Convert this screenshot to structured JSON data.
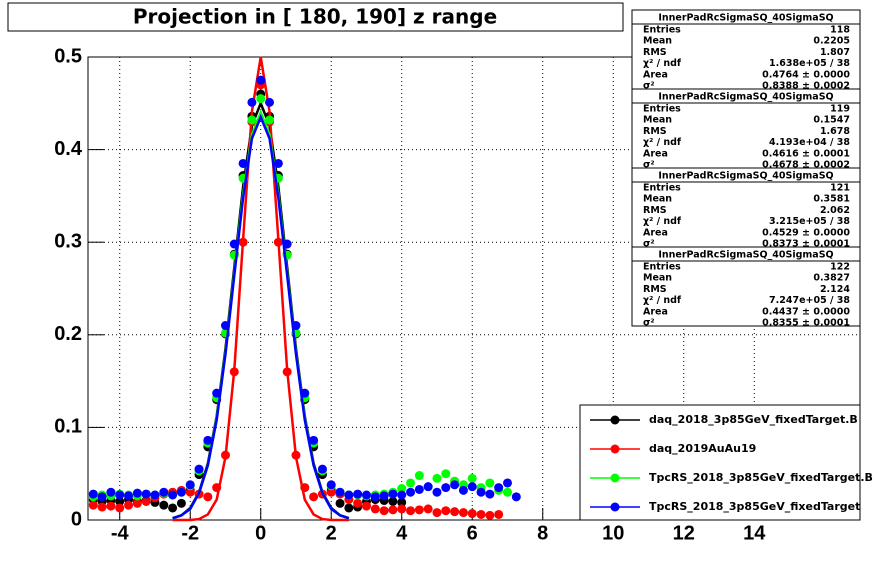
{
  "chart_data": {
    "type": "scatter",
    "title": "Projection in [ 180, 190] z range",
    "xlim": [
      -4.9,
      17
    ],
    "ylim": [
      0,
      0.5
    ],
    "grid": true,
    "xticks": [
      -4,
      -2,
      0,
      2,
      4,
      6,
      8,
      10,
      12,
      14
    ],
    "yticks": [
      0,
      0.1,
      0.2,
      0.3,
      0.4,
      0.5
    ],
    "x": [
      -4.75,
      -4.5,
      -4.25,
      -4,
      -3.75,
      -3.5,
      -3.25,
      -3,
      -2.75,
      -2.5,
      -2.25,
      -2,
      -1.75,
      -1.5,
      -1.25,
      -1,
      -0.75,
      -0.5,
      -0.25,
      0,
      0.25,
      0.5,
      0.75,
      1,
      1.25,
      1.5,
      1.75,
      2,
      2.25,
      2.5,
      2.75,
      3,
      3.25,
      3.5,
      3.75,
      4,
      4.25,
      4.5,
      4.75,
      5,
      5.25,
      5.5,
      5.75,
      6,
      6.25,
      6.5,
      6.75,
      7,
      7.25
    ],
    "fit_x": [
      -2.5,
      -2.25,
      -2,
      -1.75,
      -1.5,
      -1.25,
      -1,
      -0.75,
      -0.5,
      -0.25,
      0,
      0.25,
      0.5,
      0.75,
      1,
      1.25,
      1.5,
      1.75,
      2,
      2.25,
      2.5
    ],
    "series": [
      {
        "name": "daq_2018_3p85GeV_fixedTarget.B",
        "color": "#000000",
        "values": [
          0.022,
          0.02,
          0.021,
          0.02,
          0.022,
          0.02,
          0.021,
          0.019,
          0.016,
          0.013,
          0.018,
          0.032,
          0.049,
          0.079,
          0.13,
          0.201,
          0.287,
          0.372,
          0.436,
          0.46,
          0.436,
          0.372,
          0.287,
          0.201,
          0.13,
          0.079,
          0.049,
          0.032,
          0.018,
          0.013,
          0.014,
          0.02,
          0.022,
          0.021,
          0.02,
          0.019,
          null,
          null,
          null,
          null,
          null,
          null,
          null,
          null,
          null,
          null,
          null,
          null,
          null
        ],
        "fit_values": [
          0.002,
          0.005,
          0.013,
          0.03,
          0.061,
          0.112,
          0.185,
          0.273,
          0.36,
          0.426,
          0.45,
          0.426,
          0.36,
          0.273,
          0.185,
          0.112,
          0.061,
          0.03,
          0.013,
          0.005,
          0.002
        ]
      },
      {
        "name": "daq_2019AuAu19",
        "color": "#ff0000",
        "values": [
          0.016,
          0.014,
          0.015,
          0.013,
          0.016,
          0.018,
          0.02,
          0.024,
          0.028,
          0.03,
          0.032,
          0.03,
          0.028,
          0.025,
          0.035,
          0.07,
          0.16,
          0.3,
          0.43,
          0.47,
          0.43,
          0.3,
          0.16,
          0.07,
          0.035,
          0.025,
          0.028,
          0.03,
          0.028,
          0.022,
          0.018,
          0.015,
          0.012,
          0.01,
          0.011,
          0.012,
          0.01,
          0.011,
          0.012,
          0.008,
          0.01,
          0.009,
          0.008,
          0.007,
          0.006,
          0.005,
          0.006,
          null,
          null
        ],
        "fit_values": [
          0,
          0,
          0,
          0.001,
          0.006,
          0.022,
          0.068,
          0.162,
          0.303,
          0.441,
          0.5,
          0.441,
          0.303,
          0.162,
          0.068,
          0.022,
          0.006,
          0.001,
          0,
          0,
          0
        ]
      },
      {
        "name": "TpcRS_2018_3p85GeV_fixedTarget.B",
        "color": "#00ff00",
        "values": [
          0.025,
          0.027,
          0.026,
          0.028,
          0.027,
          0.026,
          0.028,
          0.027,
          0.029,
          0.027,
          0.03,
          0.037,
          0.053,
          0.083,
          0.132,
          0.202,
          0.286,
          0.369,
          0.432,
          0.455,
          0.432,
          0.369,
          0.286,
          0.202,
          0.132,
          0.083,
          0.053,
          0.037,
          0.03,
          0.027,
          0.027,
          0.026,
          0.027,
          0.028,
          0.03,
          0.034,
          0.04,
          0.048,
          0.036,
          0.045,
          0.05,
          0.042,
          0.038,
          0.045,
          0.035,
          0.04,
          0.032,
          0.03,
          null
        ],
        "fit_values": [
          0.002,
          0.005,
          0.012,
          0.029,
          0.059,
          0.11,
          0.181,
          0.267,
          0.352,
          0.416,
          0.44,
          0.416,
          0.352,
          0.267,
          0.181,
          0.11,
          0.059,
          0.029,
          0.012,
          0.005,
          0.002
        ]
      },
      {
        "name": "TpcRS_2018_3p85GeV_fixedTarget",
        "color": "#0000ff",
        "values": [
          0.028,
          0.025,
          0.03,
          0.027,
          0.026,
          0.029,
          0.028,
          0.027,
          0.03,
          0.027,
          0.03,
          0.038,
          0.055,
          0.086,
          0.137,
          0.21,
          0.298,
          0.385,
          0.451,
          0.475,
          0.451,
          0.385,
          0.298,
          0.21,
          0.137,
          0.086,
          0.055,
          0.038,
          0.03,
          0.027,
          0.028,
          0.027,
          0.025,
          0.026,
          0.028,
          0.027,
          0.03,
          0.033,
          0.036,
          0.03,
          0.035,
          0.038,
          0.032,
          0.036,
          0.03,
          0.028,
          0.035,
          0.04,
          0.025
        ],
        "fit_values": [
          0.002,
          0.005,
          0.012,
          0.029,
          0.059,
          0.108,
          0.179,
          0.264,
          0.348,
          0.412,
          0.435,
          0.412,
          0.348,
          0.264,
          0.179,
          0.108,
          0.059,
          0.029,
          0.012,
          0.005,
          0.002
        ]
      }
    ],
    "stats": [
      {
        "title": "InnerPadRcSigmaSQ_40SigmaSQ",
        "rows": [
          [
            "Entries",
            "118"
          ],
          [
            "Mean",
            "0.2205"
          ],
          [
            "RMS",
            "1.807"
          ],
          [
            "χ² / ndf",
            "1.638e+05 / 38"
          ],
          [
            "Area",
            "0.4764 ± 0.0000"
          ],
          [
            "σ²",
            "0.8388 ± 0.0002"
          ]
        ]
      },
      {
        "title": "InnerPadRcSigmaSQ_40SigmaSQ",
        "rows": [
          [
            "Entries",
            "119"
          ],
          [
            "Mean",
            "0.1547"
          ],
          [
            "RMS",
            "1.678"
          ],
          [
            "χ² / ndf",
            "4.193e+04 / 38"
          ],
          [
            "Area",
            "0.4616 ± 0.0001"
          ],
          [
            "σ²",
            "0.4678 ± 0.0002"
          ]
        ]
      },
      {
        "title": "InnerPadRcSigmaSQ_40SigmaSQ",
        "rows": [
          [
            "Entries",
            "121"
          ],
          [
            "Mean",
            "0.3581"
          ],
          [
            "RMS",
            "2.062"
          ],
          [
            "χ² / ndf",
            "3.215e+05 / 38"
          ],
          [
            "Area",
            "0.4529 ± 0.0000"
          ],
          [
            "σ²",
            "0.8373 ± 0.0001"
          ]
        ]
      },
      {
        "title": "InnerPadRcSigmaSQ_40SigmaSQ",
        "rows": [
          [
            "Entries",
            "122"
          ],
          [
            "Mean",
            "0.3827"
          ],
          [
            "RMS",
            "2.124"
          ],
          [
            "χ² / ndf",
            "7.247e+05 / 38"
          ],
          [
            "Area",
            "0.4437 ± 0.0000"
          ],
          [
            "σ²",
            "0.8355 ± 0.0001"
          ]
        ]
      }
    ]
  }
}
